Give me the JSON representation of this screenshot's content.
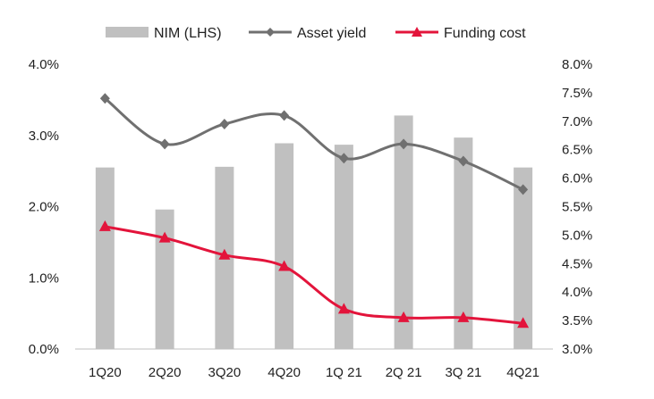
{
  "chart_data": {
    "type": "bar",
    "categories": [
      "1Q20",
      "2Q20",
      "3Q20",
      "4Q20",
      "1Q 21",
      "2Q 21",
      "3Q 21",
      "4Q21"
    ],
    "series": [
      {
        "name": "NIM (LHS)",
        "type": "bar",
        "axis": "left",
        "values": [
          2.55,
          1.96,
          2.56,
          2.89,
          2.87,
          3.28,
          2.97,
          2.55
        ],
        "color": "#c0c0c0"
      },
      {
        "name": "Asset yield",
        "type": "line",
        "marker": "diamond",
        "axis": "right",
        "values": [
          7.4,
          6.6,
          6.95,
          7.1,
          6.35,
          6.6,
          6.3,
          5.8
        ],
        "color": "#707070"
      },
      {
        "name": "Funding cost",
        "type": "line",
        "marker": "triangle",
        "axis": "right",
        "values": [
          5.15,
          4.95,
          4.65,
          4.45,
          3.7,
          3.55,
          3.55,
          3.45
        ],
        "color": "#e3143b"
      }
    ],
    "left_axis": {
      "min": 0,
      "max": 4,
      "ticks": [
        "0.0%",
        "1.0%",
        "2.0%",
        "3.0%",
        "4.0%"
      ]
    },
    "right_axis": {
      "min": 3,
      "max": 8,
      "ticks": [
        "3.0%",
        "3.5%",
        "4.0%",
        "4.5%",
        "5.0%",
        "5.5%",
        "6.0%",
        "6.5%",
        "7.0%",
        "7.5%",
        "8.0%"
      ]
    },
    "legend": {
      "position": "top-center",
      "items": [
        "NIM (LHS)",
        "Asset yield",
        "Funding cost"
      ]
    },
    "grid": false
  }
}
